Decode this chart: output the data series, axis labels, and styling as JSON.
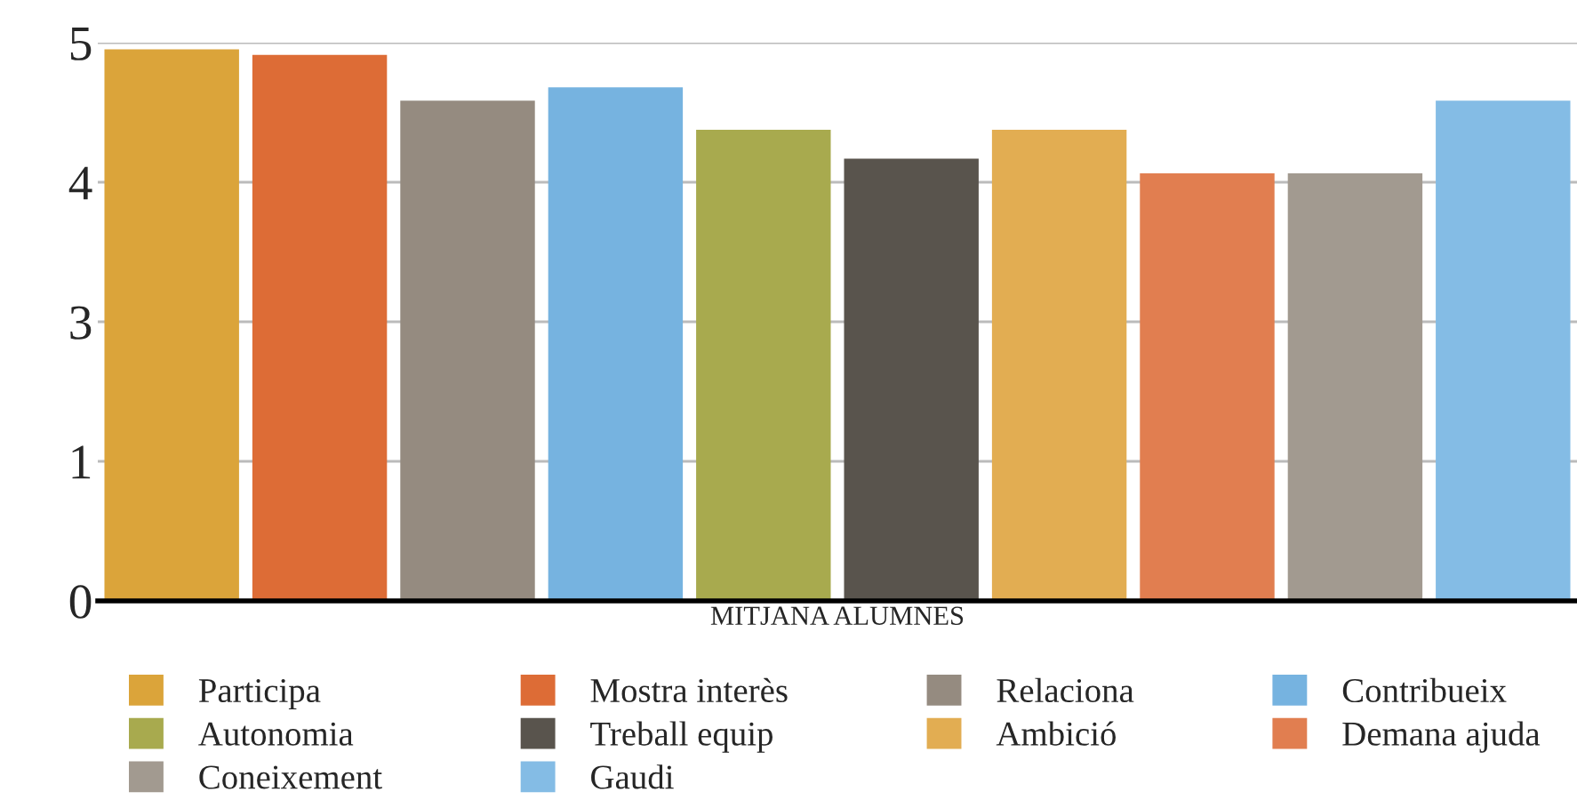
{
  "chart_data": {
    "type": "bar",
    "categories": [
      "MITJANA ALUMNES"
    ],
    "series": [
      {
        "name": "Participa",
        "color": "#dba43a",
        "values": [
          4.94
        ]
      },
      {
        "name": "Mostra interès",
        "color": "#dd6c36",
        "values": [
          4.89
        ]
      },
      {
        "name": "Relaciona",
        "color": "#958b80",
        "values": [
          4.48
        ]
      },
      {
        "name": "Contribueix",
        "color": "#76b3e0",
        "values": [
          4.6
        ]
      },
      {
        "name": "Autonomia",
        "color": "#a8aa4e",
        "values": [
          4.22
        ]
      },
      {
        "name": "Treball equip",
        "color": "#59544d",
        "values": [
          3.96
        ]
      },
      {
        "name": "Ambició",
        "color": "#e2ad52",
        "values": [
          4.22
        ]
      },
      {
        "name": "Demana ajuda",
        "color": "#e17e50",
        "values": [
          3.83
        ]
      },
      {
        "name": "Coneixement",
        "color": "#a29a90",
        "values": [
          3.83
        ]
      },
      {
        "name": "Gaudi",
        "color": "#84bce5",
        "values": [
          4.48
        ]
      }
    ],
    "ylim": [
      0,
      5
    ],
    "yticks": [
      0,
      {
        "value": 1.25,
        "label": "1"
      },
      {
        "value": 2.5,
        "label": "3"
      },
      {
        "value": 3.75,
        "label": "4"
      },
      5
    ],
    "grid": "y",
    "legend": "bottom"
  }
}
